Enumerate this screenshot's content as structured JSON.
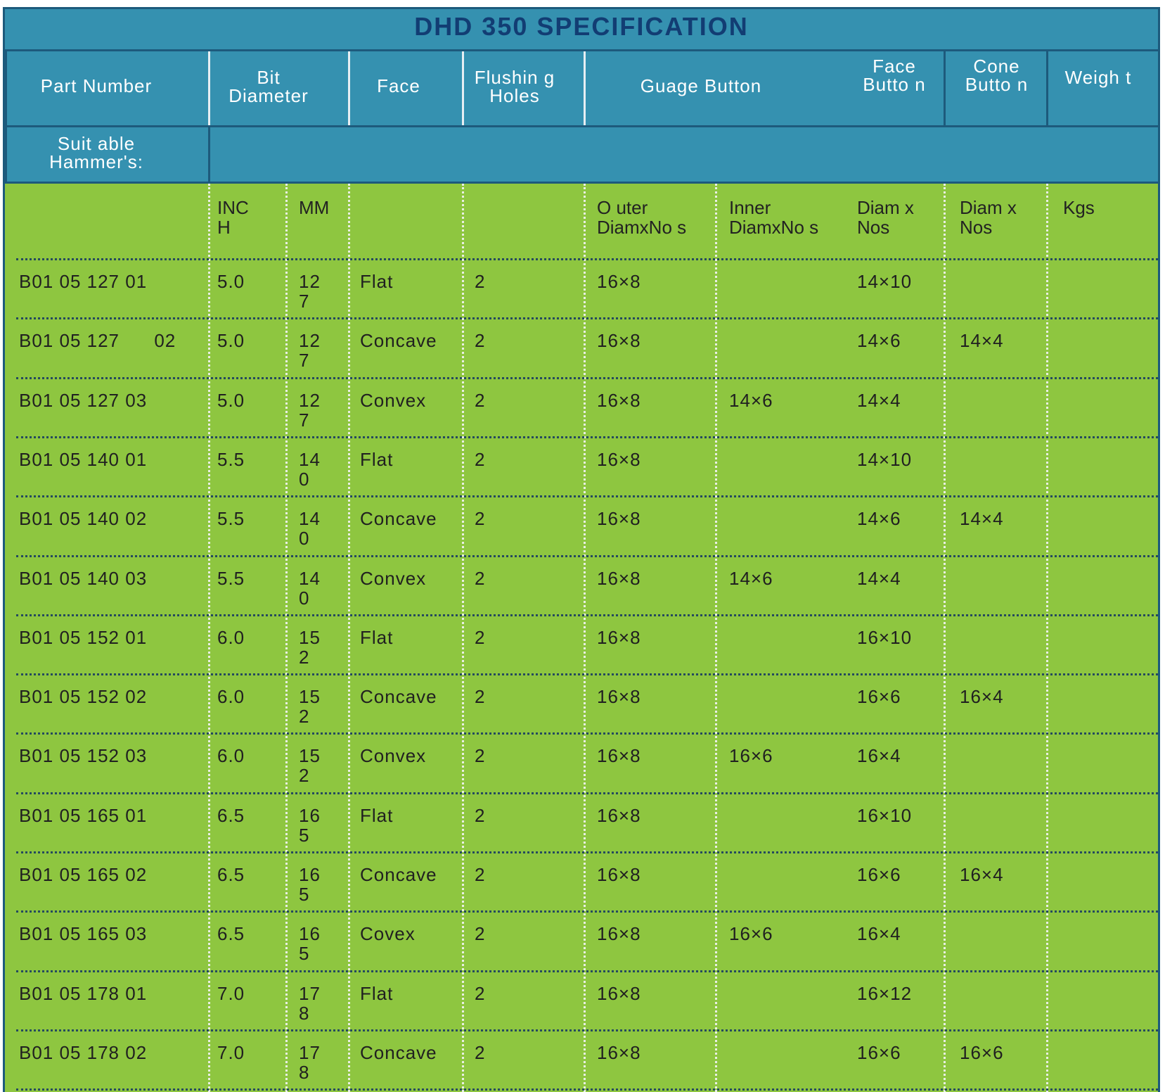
{
  "title": "DHD 350  SPECIFICATION",
  "headers": {
    "part_number": "Part Number",
    "bit_diameter": "Bit Diameter",
    "face": "Face",
    "flushing_holes": "Flushin g Holes",
    "guage_button": "Guage Button",
    "face_button": "Face Butto n",
    "cone_button": "Cone Butto n",
    "weight": "Weigh t",
    "suitable_hammers": "Suit able Hammer's:"
  },
  "subheaders": {
    "inch": "INC H",
    "mm": "MM",
    "outer": "O uter DiamxNo s",
    "inner": "Inner DiamxNo s",
    "face_button": "Diam x Nos",
    "cone_button": "Diam x Nos",
    "weight": "Kgs"
  },
  "rows": [
    {
      "part": "B01 05 127 01",
      "inch": "5.0",
      "mm": "127",
      "face": "Flat",
      "holes": "2",
      "outer": "16×8",
      "inner": "",
      "face_btn": "14×10",
      "cone_btn": "",
      "kgs": ""
    },
    {
      "part": "B01 05 127      02",
      "inch": "5.0",
      "mm": "127",
      "face": "Concave",
      "holes": "2",
      "outer": "16×8",
      "inner": "",
      "face_btn": "14×6",
      "cone_btn": "14×4",
      "kgs": ""
    },
    {
      "part": "B01 05 127 03",
      "inch": "5.0",
      "mm": "127",
      "face": "Convex",
      "holes": "2",
      "outer": "16×8",
      "inner": "14×6",
      "face_btn": "14×4",
      "cone_btn": "",
      "kgs": ""
    },
    {
      "part": "B01 05 140 01",
      "inch": "5.5",
      "mm": "140",
      "face": "Flat",
      "holes": "2",
      "outer": "16×8",
      "inner": "",
      "face_btn": "14×10",
      "cone_btn": "",
      "kgs": ""
    },
    {
      "part": "B01 05 140 02",
      "inch": "5.5",
      "mm": "140",
      "face": "Concave",
      "holes": "2",
      "outer": "16×8",
      "inner": "",
      "face_btn": "14×6",
      "cone_btn": "14×4",
      "kgs": ""
    },
    {
      "part": "B01 05 140 03",
      "inch": "5.5",
      "mm": "140",
      "face": "Convex",
      "holes": "2",
      "outer": "16×8",
      "inner": "14×6",
      "face_btn": "14×4",
      "cone_btn": "",
      "kgs": ""
    },
    {
      "part": "B01 05 152 01",
      "inch": "6.0",
      "mm": "152",
      "face": "Flat",
      "holes": "2",
      "outer": "16×8",
      "inner": "",
      "face_btn": "16×10",
      "cone_btn": "",
      "kgs": ""
    },
    {
      "part": "B01 05 152 02",
      "inch": "6.0",
      "mm": "152",
      "face": "Concave",
      "holes": "2",
      "outer": "16×8",
      "inner": "",
      "face_btn": "16×6",
      "cone_btn": "16×4",
      "kgs": ""
    },
    {
      "part": "B01 05 152 03",
      "inch": "6.0",
      "mm": "152",
      "face": "Convex",
      "holes": "2",
      "outer": "16×8",
      "inner": "16×6",
      "face_btn": "16×4",
      "cone_btn": "",
      "kgs": ""
    },
    {
      "part": "B01 05 165 01",
      "inch": "6.5",
      "mm": "165",
      "face": "Flat",
      "holes": "2",
      "outer": "16×8",
      "inner": "",
      "face_btn": "16×10",
      "cone_btn": "",
      "kgs": ""
    },
    {
      "part": "B01 05 165 02",
      "inch": "6.5",
      "mm": "165",
      "face": "Concave",
      "holes": "2",
      "outer": "16×8",
      "inner": "",
      "face_btn": "16×6",
      "cone_btn": "16×4",
      "kgs": ""
    },
    {
      "part": "B01 05 165 03",
      "inch": "6.5",
      "mm": "165",
      "face": "Covex",
      "holes": "2",
      "outer": "16×8",
      "inner": "16×6",
      "face_btn": "16×4",
      "cone_btn": "",
      "kgs": ""
    },
    {
      "part": "B01 05 178 01",
      "inch": "7.0",
      "mm": "178",
      "face": "Flat",
      "holes": "2",
      "outer": "16×8",
      "inner": "",
      "face_btn": "16×12",
      "cone_btn": "",
      "kgs": ""
    },
    {
      "part": "B01 05 178 02",
      "inch": "7.0",
      "mm": "178",
      "face": "Concave",
      "holes": "2",
      "outer": "16×8",
      "inner": "",
      "face_btn": "16×6",
      "cone_btn": "16×6",
      "kgs": ""
    }
  ]
}
